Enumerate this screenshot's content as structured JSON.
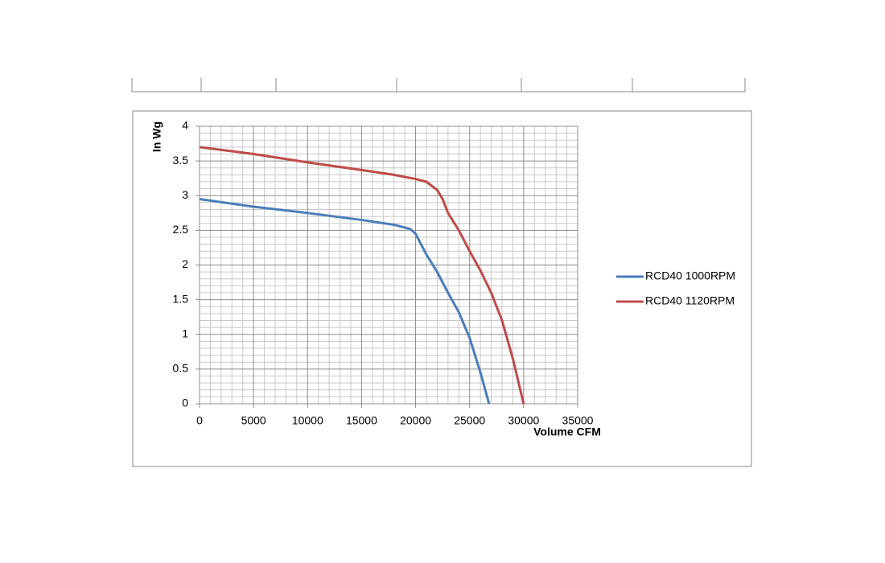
{
  "chart_data": {
    "type": "line",
    "x_label": "Volume CFM",
    "y_label": "In Wg",
    "xlim": [
      0,
      35000
    ],
    "xticks": [
      0,
      5000,
      10000,
      15000,
      20000,
      25000,
      30000,
      35000
    ],
    "ylim": [
      0,
      4
    ],
    "yticks": [
      0,
      0.5,
      1,
      1.5,
      2,
      2.5,
      3,
      3.5,
      4
    ],
    "grid": true,
    "legend": "right",
    "series": [
      {
        "name": "RCD40 1000RPM",
        "color": "#4a7ebb",
        "x": [
          0,
          5000,
          10000,
          15000,
          18000,
          19500,
          20000,
          20500,
          21000,
          22000,
          23000,
          24000,
          25000,
          26000,
          26800
        ],
        "values": [
          2.95,
          2.84,
          2.75,
          2.65,
          2.58,
          2.52,
          2.45,
          2.3,
          2.15,
          1.9,
          1.6,
          1.32,
          0.95,
          0.45,
          0
        ]
      },
      {
        "name": "RCD40 1120RPM",
        "color": "#be4b48",
        "x": [
          0,
          5000,
          10000,
          15000,
          18000,
          20000,
          21000,
          22000,
          22500,
          23000,
          24000,
          25000,
          26000,
          27000,
          28000,
          29000,
          30000
        ],
        "values": [
          3.7,
          3.6,
          3.48,
          3.37,
          3.3,
          3.24,
          3.2,
          3.08,
          2.95,
          2.75,
          2.5,
          2.2,
          1.92,
          1.6,
          1.2,
          0.65,
          0
        ]
      }
    ]
  }
}
